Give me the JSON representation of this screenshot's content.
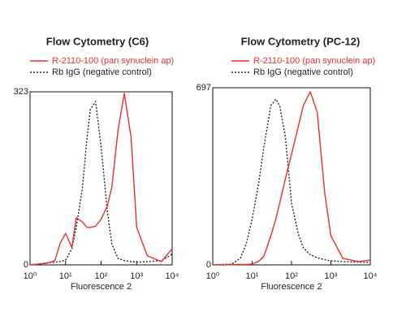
{
  "chart_data": [
    {
      "type": "line",
      "title": "Flow Cytometry (C6)",
      "x_label": "Fluorescence 2",
      "xscale": "log",
      "x": [
        1,
        2,
        3,
        5,
        7,
        10,
        15,
        20,
        30,
        40,
        50,
        70,
        100,
        150,
        200,
        300,
        450,
        700,
        1000,
        2000,
        5000,
        10000
      ],
      "xlim": [
        1,
        10000
      ],
      "xticks": [
        {
          "value": 1,
          "label": "10⁰"
        },
        {
          "value": 10,
          "label": "10¹"
        },
        {
          "value": 100,
          "label": "10²"
        },
        {
          "value": 1000,
          "label": "10³"
        },
        {
          "value": 10000,
          "label": "10⁴"
        }
      ],
      "ylim": [
        0,
        323
      ],
      "yticks": [
        0,
        323
      ],
      "series": [
        {
          "name": "R-2110-100 (pan synuclein ap)",
          "color": "#e8302a",
          "line_style": "solid",
          "values": [
            0,
            2,
            3,
            8,
            40,
            59,
            32,
            88,
            80,
            70,
            70,
            72,
            85,
            110,
            145,
            252,
            320,
            237,
            70,
            17,
            6,
            30
          ]
        },
        {
          "name": "Rb IgG (negative control)",
          "color": "#222222",
          "line_style": "dotted",
          "values": [
            0,
            2,
            4,
            5,
            6,
            9,
            30,
            70,
            145,
            237,
            290,
            305,
            221,
            100,
            39,
            12,
            8,
            6,
            5,
            6,
            8,
            20
          ]
        }
      ]
    },
    {
      "type": "line",
      "title": "Flow Cytometry (PC-12)",
      "x_label": "Fluorescence 2",
      "xscale": "log",
      "x": [
        1,
        2,
        3,
        5,
        7,
        10,
        15,
        20,
        30,
        40,
        50,
        70,
        100,
        150,
        200,
        300,
        450,
        700,
        1000,
        2000,
        5000,
        10000
      ],
      "xlim": [
        1,
        10000
      ],
      "xticks": [
        {
          "value": 1,
          "label": "10⁰"
        },
        {
          "value": 10,
          "label": "10¹"
        },
        {
          "value": 100,
          "label": "10²"
        },
        {
          "value": 1000,
          "label": "10³"
        },
        {
          "value": 10000,
          "label": "10⁴"
        }
      ],
      "ylim": [
        0,
        697
      ],
      "yticks": [
        0,
        697
      ],
      "series": [
        {
          "name": "R-2110-100 (pan synuclein ap)",
          "color": "#e8302a",
          "line_style": "solid",
          "values": [
            0,
            0,
            1,
            2,
            2,
            3,
            15,
            35,
            115,
            180,
            243,
            340,
            435,
            547,
            627,
            681,
            600,
            280,
            115,
            26,
            13,
            19
          ]
        },
        {
          "name": "Rb IgG (negative control)",
          "color": "#222222",
          "line_style": "dotted",
          "values": [
            0,
            2,
            3,
            26,
            80,
            179,
            330,
            467,
            627,
            652,
            627,
            502,
            243,
            120,
            67,
            40,
            28,
            20,
            16,
            13,
            11,
            10
          ]
        }
      ]
    }
  ]
}
